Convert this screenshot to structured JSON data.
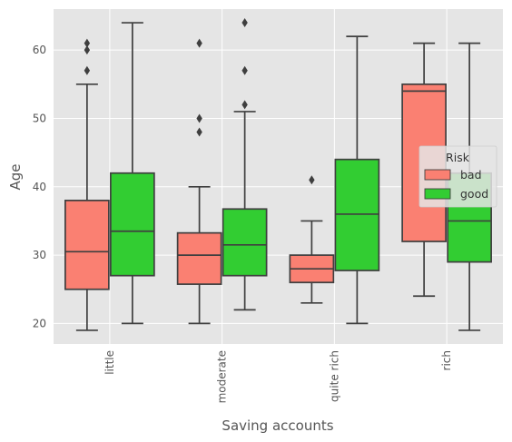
{
  "chart_data": {
    "type": "box",
    "xlabel": "Saving accounts",
    "ylabel": "Age",
    "categories": [
      "little",
      "moderate",
      "quite rich",
      "rich"
    ],
    "yticks": [
      20,
      30,
      40,
      50,
      60
    ],
    "ylim": [
      17,
      66
    ],
    "grid": true,
    "legend": {
      "title": "Risk",
      "placement": "center-right",
      "entries": [
        "bad",
        "good"
      ]
    },
    "series": [
      {
        "name": "bad",
        "color": "#FA8072",
        "boxes": [
          {
            "whisker_low": 19,
            "q1": 25,
            "median": 30.5,
            "q3": 38,
            "whisker_high": 55,
            "outliers": [
              57,
              60,
              61
            ]
          },
          {
            "whisker_low": 20,
            "q1": 25.75,
            "median": 30,
            "q3": 33.25,
            "whisker_high": 40,
            "outliers": [
              48,
              50,
              61
            ]
          },
          {
            "whisker_low": 23,
            "q1": 26,
            "median": 28,
            "q3": 30,
            "whisker_high": 35,
            "outliers": [
              41
            ]
          },
          {
            "whisker_low": 24,
            "q1": 32,
            "median": 54,
            "q3": 55,
            "whisker_high": 61,
            "outliers": []
          }
        ]
      },
      {
        "name": "good",
        "color": "#32CD32",
        "boxes": [
          {
            "whisker_low": 20,
            "q1": 27,
            "median": 33.5,
            "q3": 42,
            "whisker_high": 64,
            "outliers": []
          },
          {
            "whisker_low": 22,
            "q1": 27,
            "median": 31.5,
            "q3": 36.75,
            "whisker_high": 51,
            "outliers": [
              52,
              57,
              64
            ]
          },
          {
            "whisker_low": 20,
            "q1": 27.75,
            "median": 36,
            "q3": 44,
            "whisker_high": 62,
            "outliers": []
          },
          {
            "whisker_low": 19,
            "q1": 29,
            "median": 35,
            "q3": 42,
            "whisker_high": 61,
            "outliers": []
          }
        ]
      }
    ],
    "colors": {
      "plot_background": "#E5E5E5",
      "grid": "#FFFFFF",
      "box_line": "#3F3F3F"
    }
  }
}
